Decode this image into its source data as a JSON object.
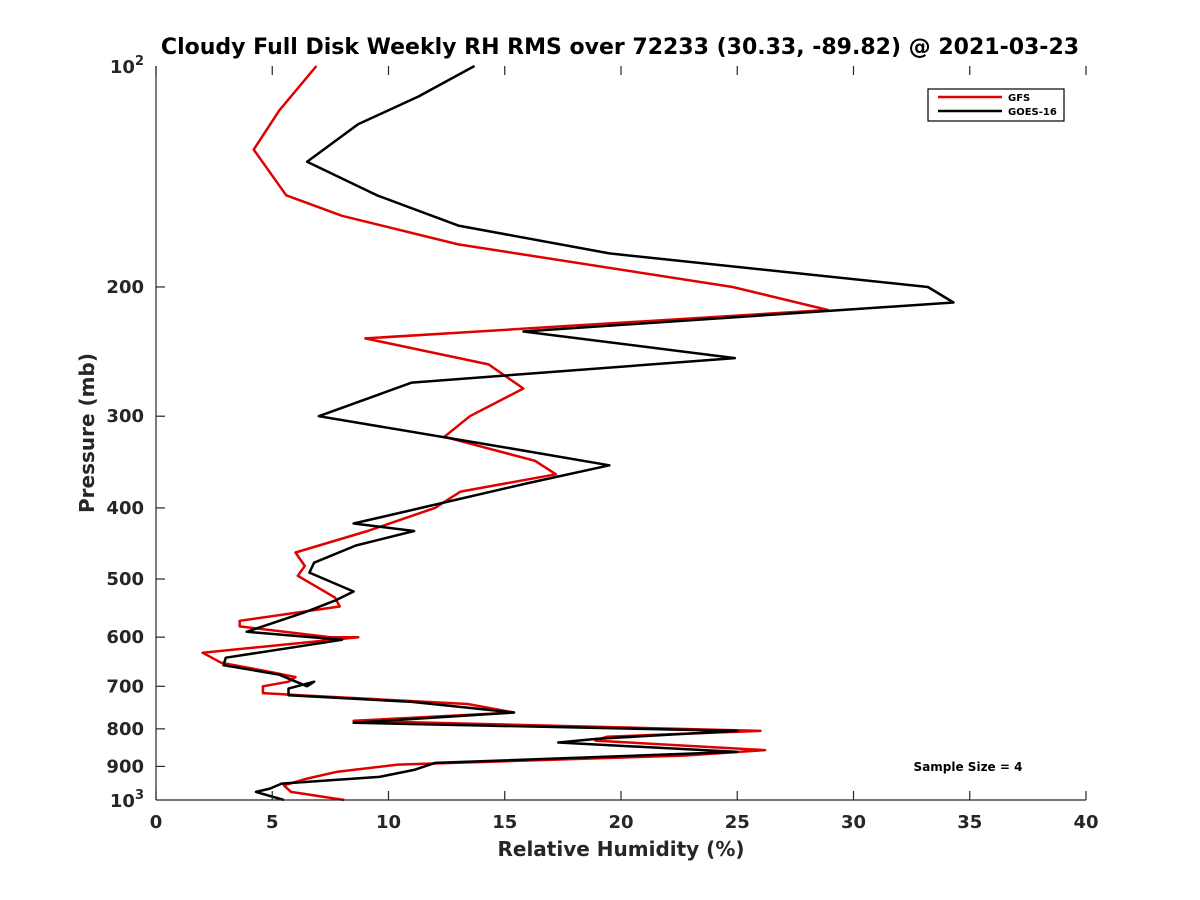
{
  "chart_data": {
    "type": "line",
    "title": "Cloudy Full Disk Weekly RH RMS over 72233 (30.33, -89.82) @ 2021-03-23",
    "xlabel": "Relative Humidity (%)",
    "ylabel": "Pressure (mb)",
    "xlim": [
      0,
      40
    ],
    "ylim": [
      100,
      1000
    ],
    "yscale": "log",
    "yreversed": true,
    "xticks": [
      0,
      5,
      10,
      15,
      20,
      25,
      30,
      35,
      40
    ],
    "xtick_labels": [
      "0",
      "5",
      "10",
      "15",
      "20",
      "25",
      "30",
      "35",
      "40"
    ],
    "yticks": [
      200,
      300,
      400,
      500,
      600,
      700,
      800,
      900
    ],
    "ytick_labels": [
      "200",
      "300",
      "400",
      "500",
      "600",
      "700",
      "800",
      "900"
    ],
    "ytick_end_labels": [
      {
        "value": 100,
        "base": "10",
        "exp": "2"
      },
      {
        "value": 1000,
        "base": "10",
        "exp": "3"
      }
    ],
    "grid": false,
    "legend_position": "top-right",
    "annotation": "Sample Size = 4",
    "series": [
      {
        "name": "GFS",
        "color": "#e00000",
        "points": [
          [
            6.9,
            100
          ],
          [
            5.3,
            115
          ],
          [
            4.2,
            130
          ],
          [
            5.6,
            150
          ],
          [
            8.0,
            160
          ],
          [
            13,
            175
          ],
          [
            24.8,
            200
          ],
          [
            28.9,
            215
          ],
          [
            9.0,
            235
          ],
          [
            14.3,
            255
          ],
          [
            15.8,
            275
          ],
          [
            13.5,
            300
          ],
          [
            12.4,
            320
          ],
          [
            16.3,
            345
          ],
          [
            17.2,
            360
          ],
          [
            13.1,
            380
          ],
          [
            12.0,
            400
          ],
          [
            9.1,
            430
          ],
          [
            6.0,
            460
          ],
          [
            6.4,
            480
          ],
          [
            6.1,
            495
          ],
          [
            7.7,
            530
          ],
          [
            7.9,
            545
          ],
          [
            3.6,
            570
          ],
          [
            3.6,
            580
          ],
          [
            7.5,
            600
          ],
          [
            8.7,
            600
          ],
          [
            2.0,
            630
          ],
          [
            2.8,
            650
          ],
          [
            5.0,
            670
          ],
          [
            6.0,
            680
          ],
          [
            5.7,
            690
          ],
          [
            4.6,
            700
          ],
          [
            4.6,
            715
          ],
          [
            6.2,
            720
          ],
          [
            13.4,
            740
          ],
          [
            15.4,
            760
          ],
          [
            8.5,
            780
          ],
          [
            26.0,
            805
          ],
          [
            19.4,
            820
          ],
          [
            18.9,
            830
          ],
          [
            26.2,
            855
          ],
          [
            22.7,
            870
          ],
          [
            10.4,
            895
          ],
          [
            7.8,
            915
          ],
          [
            6.5,
            935
          ],
          [
            5.5,
            955
          ],
          [
            5.8,
            975
          ],
          [
            8.1,
            1000
          ]
        ]
      },
      {
        "name": "GOES-16",
        "color": "#000000",
        "points": [
          [
            13.7,
            100
          ],
          [
            11.3,
            110
          ],
          [
            8.7,
            120
          ],
          [
            6.5,
            135
          ],
          [
            9.5,
            150
          ],
          [
            13,
            165
          ],
          [
            19.5,
            180
          ],
          [
            33.2,
            200
          ],
          [
            34.3,
            210
          ],
          [
            15.8,
            230
          ],
          [
            24.9,
            250
          ],
          [
            11.0,
            270
          ],
          [
            7.0,
            300
          ],
          [
            14.8,
            330
          ],
          [
            19.5,
            350
          ],
          [
            16.0,
            370
          ],
          [
            11.4,
            400
          ],
          [
            8.5,
            420
          ],
          [
            11.1,
            430
          ],
          [
            8.6,
            450
          ],
          [
            6.8,
            475
          ],
          [
            6.6,
            490
          ],
          [
            8.5,
            520
          ],
          [
            7.7,
            535
          ],
          [
            6.4,
            555
          ],
          [
            3.9,
            590
          ],
          [
            8.0,
            605
          ],
          [
            3.0,
            640
          ],
          [
            2.9,
            655
          ],
          [
            5.3,
            675
          ],
          [
            6.5,
            700
          ],
          [
            6.8,
            690
          ],
          [
            5.7,
            705
          ],
          [
            5.7,
            720
          ],
          [
            11.0,
            735
          ],
          [
            15.4,
            760
          ],
          [
            8.5,
            785
          ],
          [
            25.0,
            805
          ],
          [
            19.0,
            825
          ],
          [
            17.3,
            835
          ],
          [
            25.0,
            860
          ],
          [
            12.0,
            890
          ],
          [
            11.1,
            910
          ],
          [
            9.6,
            930
          ],
          [
            5.4,
            950
          ],
          [
            4.9,
            965
          ],
          [
            4.3,
            975
          ],
          [
            5.5,
            1000
          ]
        ]
      }
    ]
  }
}
